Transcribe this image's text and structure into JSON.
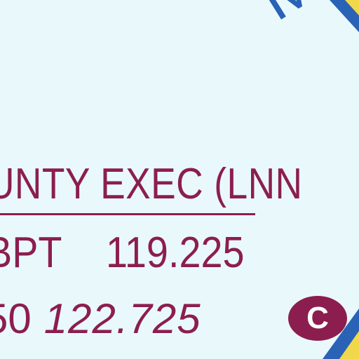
{
  "map": {
    "chart_label_top": "M",
    "station_name": "UNTY EXEC (LNN",
    "frequency_line_1_code": "BPT",
    "frequency_line_1_value": "119.225",
    "frequency_line_2_prefix": "50",
    "frequency_line_2_value": "122.725",
    "comm_badge_letter": "C"
  },
  "colors": {
    "background": "#e9f9fb",
    "text_maroon": "#8c1e4f",
    "blue_band": "#2a62b6",
    "yellow_band": "#f0d84a"
  }
}
